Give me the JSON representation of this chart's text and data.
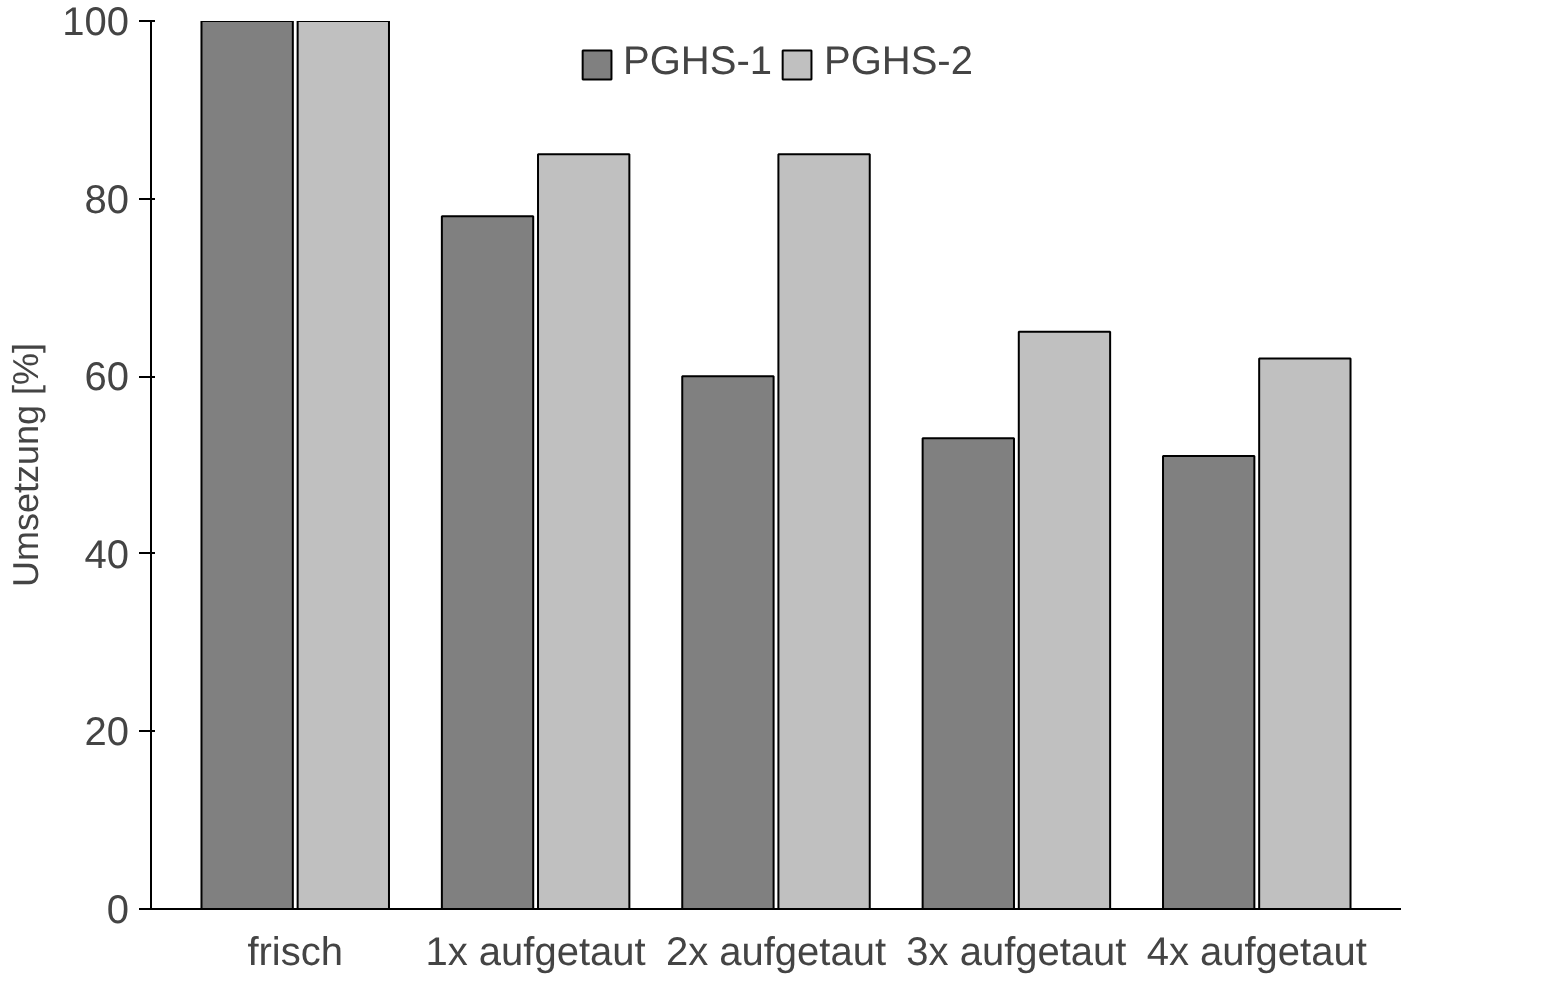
{
  "chart_data": {
    "type": "bar",
    "ylabel": "Umsetzung [%]",
    "categories": [
      "frisch",
      "1x aufgetaut",
      "2x aufgetaut",
      "3x aufgetaut",
      "4x aufgetaut"
    ],
    "series": [
      {
        "name": "PGHS-1",
        "color": "#808080",
        "values": [
          100,
          78,
          60,
          53,
          51
        ]
      },
      {
        "name": "PGHS-2",
        "color": "#c0c0c0",
        "values": [
          100,
          85,
          85,
          65,
          62
        ]
      }
    ],
    "ylim": [
      0,
      100
    ],
    "yticks": [
      0,
      20,
      40,
      60,
      80,
      100
    ],
    "grid": false,
    "legend": "top"
  }
}
